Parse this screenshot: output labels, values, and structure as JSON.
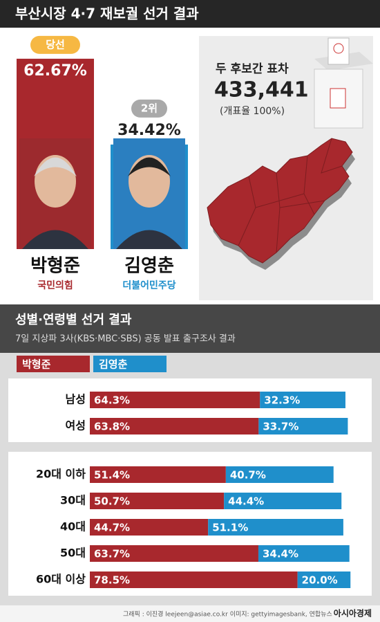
{
  "header": {
    "title": "부산시장 4·7 재보궐 선거 결과"
  },
  "margin_box": {
    "label": "두 후보간 표차",
    "value": "433,441",
    "note": "(개표율 100%)"
  },
  "footer": {
    "credit": "그래픽 : 이진경 leejeen@asiae.co.kr   이미지: gettyimagesbank, 연합뉴스",
    "brand": "아시아경제"
  },
  "chart_data": [
    {
      "type": "bar",
      "categories": [
        "박형준",
        "김영춘"
      ],
      "badges": [
        "당선",
        "2위"
      ],
      "parties": [
        "국민의힘",
        "더불어민주당"
      ],
      "values": [
        62.67,
        34.42
      ],
      "value_labels": [
        "62.67%",
        "34.42%"
      ],
      "colors": [
        "#a8282d",
        "#1f8fcb"
      ],
      "ylim": [
        0,
        100
      ]
    },
    {
      "type": "stacked-hbar",
      "title": "성별·연령별 선거 결과",
      "subtitle": "7일 지상파 3사(KBS·MBC·SBS) 공동 발표 출구조사 결과",
      "categories": [
        "남성",
        "여성"
      ],
      "series": [
        {
          "name": "박형준",
          "color": "#a8282d",
          "values": [
            64.3,
            63.8
          ],
          "value_labels": [
            "64.3%",
            "63.8%"
          ]
        },
        {
          "name": "김영춘",
          "color": "#1f8fcb",
          "values": [
            32.3,
            33.7
          ],
          "value_labels": [
            "32.3%",
            "33.7%"
          ]
        }
      ],
      "xlim": [
        0,
        100
      ]
    },
    {
      "type": "stacked-hbar",
      "categories": [
        "20대 이하",
        "30대",
        "40대",
        "50대",
        "60대 이상"
      ],
      "series": [
        {
          "color": "#a8282d",
          "values": [
            51.4,
            50.7,
            44.7,
            63.7,
            78.5
          ],
          "value_labels": [
            "51.4%",
            "50.7%",
            "44.7%",
            "63.7%",
            "78.5%"
          ]
        },
        {
          "color": "#1f8fcb",
          "values": [
            40.7,
            44.4,
            51.1,
            34.4,
            20.0
          ],
          "value_labels": [
            "40.7%",
            "44.4%",
            "51.1%",
            "34.4%",
            "20.0%"
          ]
        }
      ],
      "xlim": [
        0,
        100
      ]
    }
  ]
}
